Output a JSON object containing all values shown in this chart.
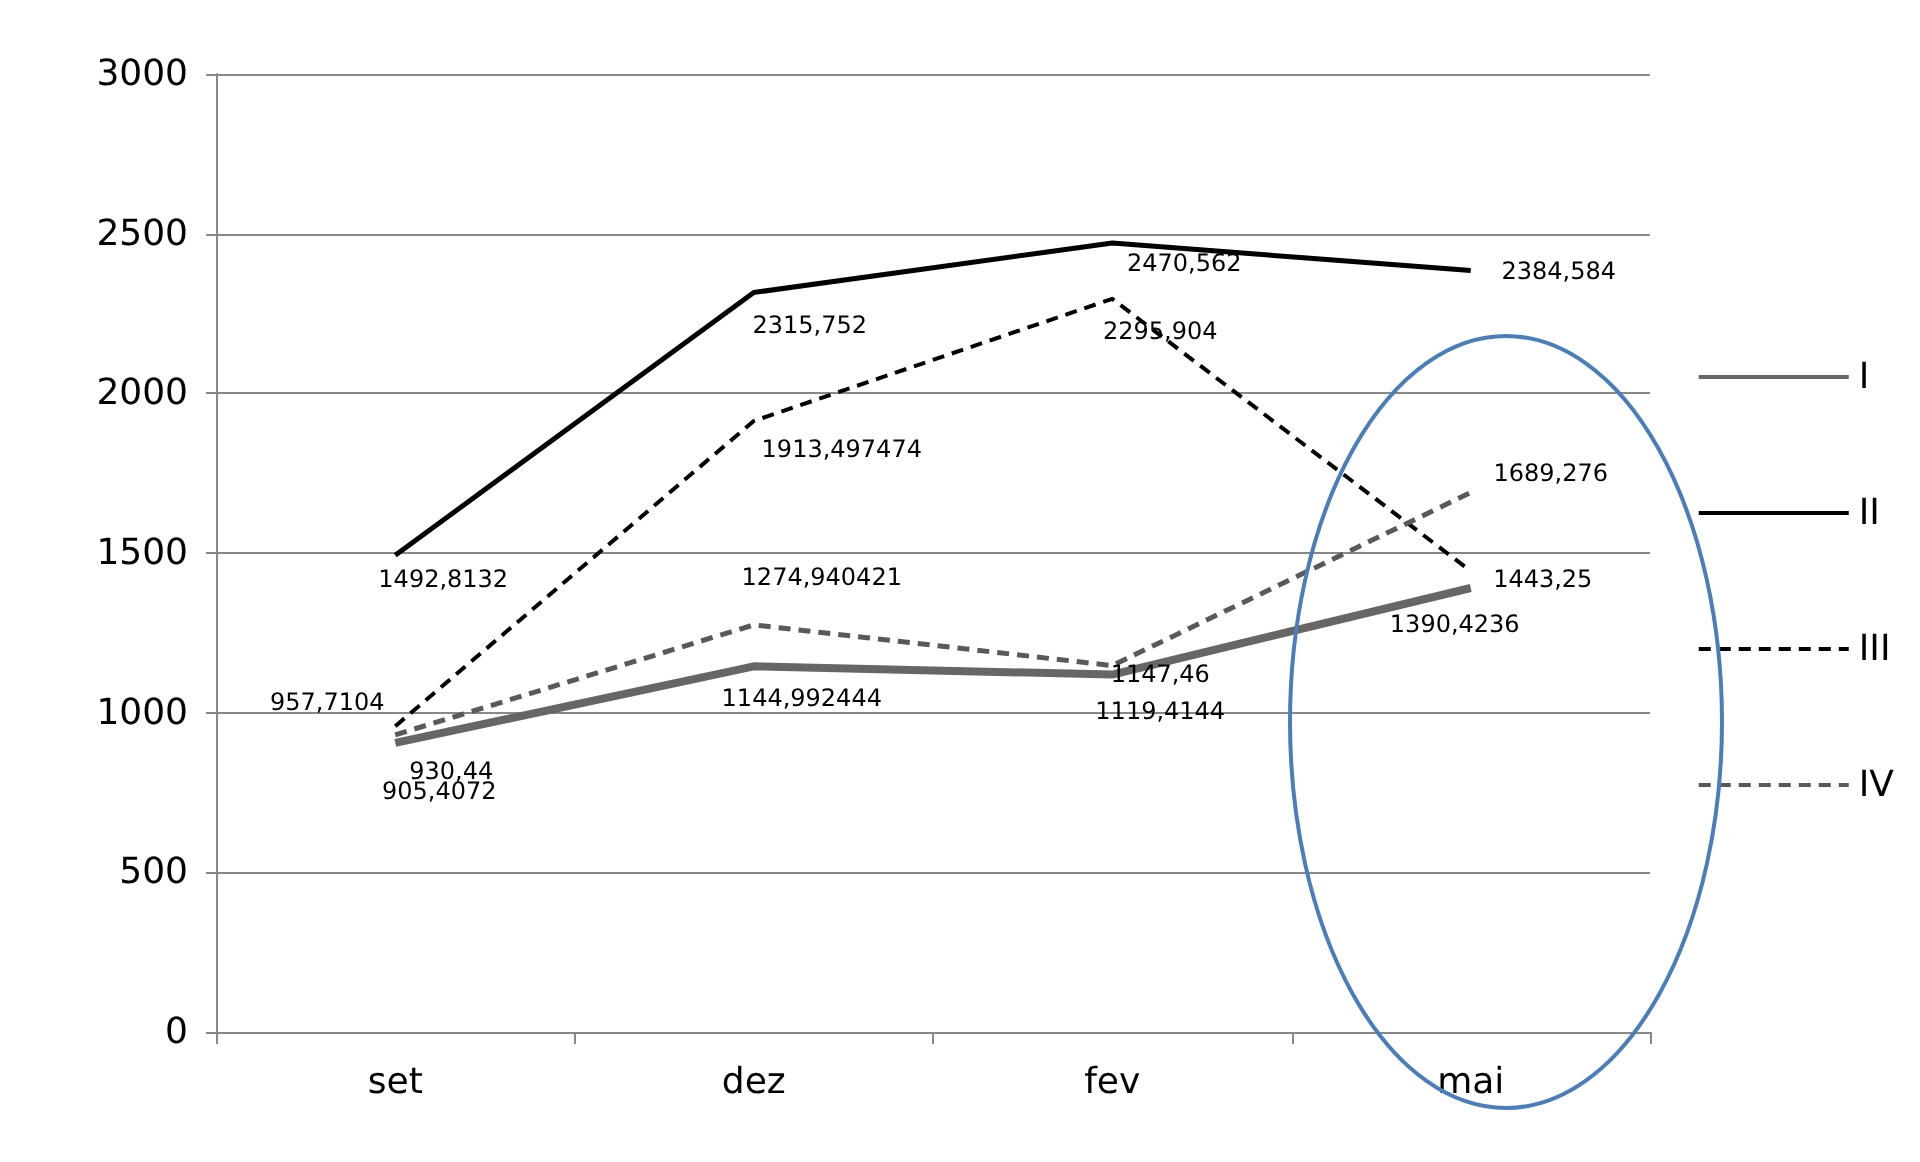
{
  "chart_data": {
    "type": "line",
    "categories": [
      "set",
      "dez",
      "fev",
      "mai"
    ],
    "series": [
      {
        "name": "I",
        "color": "#666666",
        "line_style": "solid",
        "values": [
          905.4072,
          1144.992444,
          1119.4144,
          1390.4236
        ],
        "value_labels": [
          "905,4072",
          "1144,992444",
          "1119,4144",
          "1390,4236"
        ]
      },
      {
        "name": "II",
        "color": "#000000",
        "line_style": "solid",
        "values": [
          1492.8132,
          2315.752,
          2470.562,
          2384.584
        ],
        "value_labels": [
          "1492,8132",
          "2315,752",
          "2470,562",
          "2384,584"
        ]
      },
      {
        "name": "III",
        "color": "#000000",
        "line_style": "dashed",
        "values": [
          957.7104,
          1913.497474,
          2295.904,
          1443.25
        ],
        "value_labels": [
          "957,7104",
          "1913,497474",
          "2295,904",
          "1443,25"
        ]
      },
      {
        "name": "IV",
        "color": "#595959",
        "line_style": "dashed",
        "values": [
          930.44,
          1274.940421,
          1147.46,
          1689.276
        ],
        "value_labels": [
          "930,44",
          "1274,940421",
          "1147,46",
          "1689,276"
        ]
      }
    ],
    "ylim": [
      0,
      3000
    ],
    "yticks": [
      0,
      500,
      1000,
      1500,
      2000,
      2500,
      3000
    ],
    "grid": "y",
    "legend": "right",
    "marker": "none"
  }
}
